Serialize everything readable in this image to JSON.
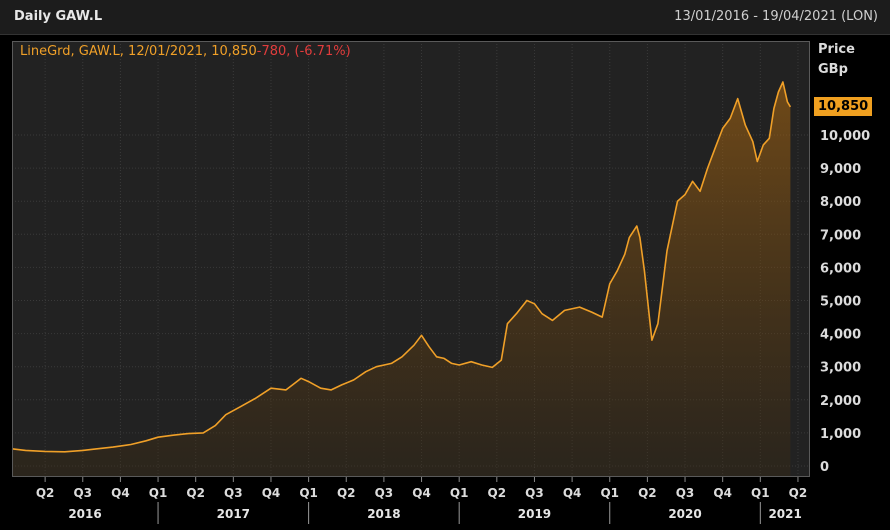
{
  "header": {
    "title": "Daily GAW.L",
    "date_range": "13/01/2016 - 19/04/2021 (LON)"
  },
  "legend": {
    "series_label": "LineGrd, GAW.L, 12/01/2021, 10,850",
    "change": "-780, (-6.71%)"
  },
  "axis": {
    "unit_line1": "Price",
    "unit_line2": "GBp",
    "last_price": "10,850"
  },
  "colors": {
    "line": "#f0a028",
    "change_negative": "#e03c3c",
    "background": "#222222",
    "grid": "#3a3a3a"
  },
  "chart_data": {
    "type": "area",
    "title": "Daily GAW.L",
    "ylabel": "Price GBp",
    "ylim": [
      0,
      11000
    ],
    "yticks": [
      0,
      1000,
      2000,
      3000,
      4000,
      5000,
      6000,
      7000,
      8000,
      9000,
      10000
    ],
    "ytick_labels": [
      "0",
      "1,000",
      "2,000",
      "3,000",
      "4,000",
      "5,000",
      "6,000",
      "7,000",
      "8,000",
      "9,000",
      "10,000"
    ],
    "xlim": [
      2016.03,
      2021.33
    ],
    "quarter_ticks": [
      {
        "x": 2016.25,
        "label": "Q2"
      },
      {
        "x": 2016.5,
        "label": "Q3"
      },
      {
        "x": 2016.75,
        "label": "Q4"
      },
      {
        "x": 2017.0,
        "label": "Q1"
      },
      {
        "x": 2017.25,
        "label": "Q2"
      },
      {
        "x": 2017.5,
        "label": "Q3"
      },
      {
        "x": 2017.75,
        "label": "Q4"
      },
      {
        "x": 2018.0,
        "label": "Q1"
      },
      {
        "x": 2018.25,
        "label": "Q2"
      },
      {
        "x": 2018.5,
        "label": "Q3"
      },
      {
        "x": 2018.75,
        "label": "Q4"
      },
      {
        "x": 2019.0,
        "label": "Q1"
      },
      {
        "x": 2019.25,
        "label": "Q2"
      },
      {
        "x": 2019.5,
        "label": "Q3"
      },
      {
        "x": 2019.75,
        "label": "Q4"
      },
      {
        "x": 2020.0,
        "label": "Q1"
      },
      {
        "x": 2020.25,
        "label": "Q2"
      },
      {
        "x": 2020.5,
        "label": "Q3"
      },
      {
        "x": 2020.75,
        "label": "Q4"
      },
      {
        "x": 2021.0,
        "label": "Q1"
      },
      {
        "x": 2021.25,
        "label": "Q2"
      }
    ],
    "years": [
      {
        "label": "2016",
        "start": 2016.03,
        "end": 2017.0
      },
      {
        "label": "2017",
        "start": 2017.0,
        "end": 2018.0
      },
      {
        "label": "2018",
        "start": 2018.0,
        "end": 2019.0
      },
      {
        "label": "2019",
        "start": 2019.0,
        "end": 2020.0
      },
      {
        "label": "2020",
        "start": 2020.0,
        "end": 2021.0
      },
      {
        "label": "2021",
        "start": 2021.0,
        "end": 2021.33
      }
    ],
    "series": [
      {
        "x": [
          2016.03,
          2016.12,
          2016.25,
          2016.38,
          2016.5,
          2016.58,
          2016.7,
          2016.82,
          2016.92,
          2017.0,
          2017.1,
          2017.2,
          2017.3,
          2017.38,
          2017.45,
          2017.55,
          2017.65,
          2017.75,
          2017.85,
          2017.95,
          2018.0,
          2018.08,
          2018.15,
          2018.22,
          2018.3,
          2018.38,
          2018.45,
          2018.55,
          2018.62,
          2018.7,
          2018.75,
          2018.8,
          2018.85,
          2018.9,
          2018.95,
          2019.0,
          2019.08,
          2019.15,
          2019.22,
          2019.28,
          2019.32,
          2019.38,
          2019.45,
          2019.5,
          2019.55,
          2019.62,
          2019.7,
          2019.8,
          2019.88,
          2019.95,
          2020.0,
          2020.05,
          2020.1,
          2020.13,
          2020.18,
          2020.2,
          2020.23,
          2020.28,
          2020.32,
          2020.38,
          2020.45,
          2020.5,
          2020.55,
          2020.6,
          2020.65,
          2020.7,
          2020.75,
          2020.8,
          2020.85,
          2020.9,
          2020.95,
          2020.98,
          2021.02,
          2021.06,
          2021.09,
          2021.12,
          2021.15,
          2021.18,
          2021.2
        ],
        "y": [
          520,
          470,
          440,
          430,
          470,
          510,
          570,
          650,
          760,
          870,
          930,
          980,
          1000,
          1220,
          1550,
          1800,
          2050,
          2350,
          2300,
          2650,
          2550,
          2350,
          2300,
          2450,
          2600,
          2850,
          3000,
          3100,
          3300,
          3650,
          3950,
          3600,
          3300,
          3250,
          3100,
          3050,
          3150,
          3050,
          2980,
          3200,
          4300,
          4600,
          5000,
          4900,
          4600,
          4400,
          4700,
          4800,
          4650,
          4500,
          5500,
          5900,
          6400,
          6900,
          7250,
          6900,
          5900,
          3800,
          4300,
          6500,
          8000,
          8200,
          8600,
          8300,
          9000,
          9600,
          10200,
          10500,
          11100,
          10300,
          9800,
          9200,
          9700,
          9900,
          10800,
          11300,
          11600,
          11000,
          10850
        ]
      }
    ]
  }
}
